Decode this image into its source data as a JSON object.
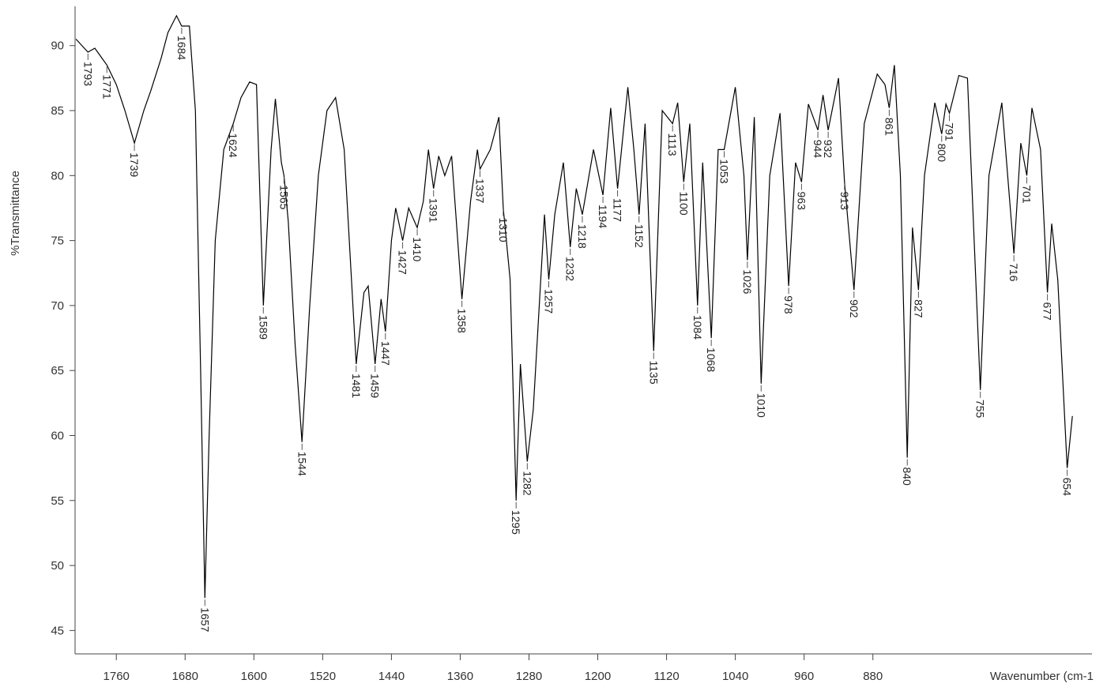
{
  "chart_data": {
    "type": "line",
    "ylabel": "%Transmittance",
    "xlabel": "Wavenumber (cm-1",
    "color": "#000000",
    "xlim": [
      1808,
      627
    ],
    "ylim": [
      43.2,
      92.9
    ],
    "xticks": [
      1760,
      1680,
      1600,
      1520,
      1440,
      1360,
      1280,
      1200,
      1120,
      1040,
      960,
      880
    ],
    "yticks": [
      45,
      50,
      55,
      60,
      65,
      70,
      75,
      80,
      85,
      90
    ],
    "x": [
      1807,
      1793,
      1785,
      1771,
      1760,
      1750,
      1739,
      1728,
      1720,
      1708,
      1700,
      1690,
      1684,
      1675,
      1668,
      1662,
      1657,
      1652,
      1645,
      1635,
      1624,
      1615,
      1605,
      1597,
      1589,
      1580,
      1575,
      1568,
      1565,
      1560,
      1552,
      1544,
      1535,
      1525,
      1515,
      1505,
      1495,
      1481,
      1472,
      1467,
      1459,
      1452,
      1447,
      1440,
      1435,
      1427,
      1420,
      1410,
      1403,
      1397,
      1391,
      1385,
      1378,
      1370,
      1358,
      1348,
      1340,
      1337,
      1325,
      1315,
      1310,
      1302,
      1295,
      1290,
      1282,
      1275,
      1262,
      1257,
      1250,
      1240,
      1232,
      1225,
      1218,
      1205,
      1194,
      1185,
      1177,
      1165,
      1158,
      1152,
      1145,
      1135,
      1125,
      1113,
      1107,
      1100,
      1093,
      1084,
      1078,
      1068,
      1060,
      1053,
      1040,
      1030,
      1026,
      1018,
      1010,
      1000,
      988,
      978,
      970,
      963,
      955,
      944,
      938,
      932,
      920,
      913,
      902,
      890,
      875,
      866,
      861,
      855,
      848,
      840,
      834,
      827,
      820,
      808,
      800,
      795,
      791,
      780,
      770,
      755,
      745,
      730,
      716,
      708,
      701,
      695,
      685,
      677,
      672,
      665,
      654,
      648
    ],
    "y": [
      90.5,
      89.5,
      89.8,
      88.5,
      87,
      85,
      82.5,
      85,
      86.5,
      89,
      91,
      92.3,
      91.5,
      91.5,
      85,
      65,
      47.5,
      60,
      75,
      82,
      84,
      86,
      87.2,
      87,
      70,
      82,
      85.9,
      81,
      80,
      76.5,
      67,
      59.5,
      70,
      80,
      85,
      86,
      82,
      65.5,
      71,
      71.5,
      65.5,
      70.5,
      68,
      75,
      77.5,
      75,
      77.5,
      76,
      78,
      82,
      79,
      81.5,
      80,
      81.5,
      70.5,
      78,
      82,
      80.5,
      82,
      84.5,
      77.5,
      72,
      55,
      65.5,
      58,
      62,
      77,
      72,
      77,
      81,
      74.5,
      79,
      77,
      82,
      78.5,
      85.2,
      79,
      86.8,
      82,
      77,
      84,
      66.5,
      85,
      84,
      85.6,
      79.5,
      84,
      70,
      81,
      67.5,
      82,
      82,
      86.8,
      80,
      73.5,
      84.5,
      64,
      80,
      84.8,
      71.5,
      81,
      79.5,
      85.5,
      83.5,
      86.2,
      83.5,
      87.5,
      79.5,
      71.2,
      84,
      87.8,
      87,
      85.2,
      88.5,
      80,
      58.3,
      76,
      71.2,
      80,
      85.6,
      83.2,
      85.5,
      84.8,
      87.7,
      87.5,
      63.5,
      80,
      85.6,
      74,
      82.5,
      80,
      85.2,
      82,
      71,
      76.3,
      72,
      57.5,
      61.5
    ],
    "peaks": [
      {
        "x": 1793,
        "y": 89.5
      },
      {
        "x": 1771,
        "y": 88.5
      },
      {
        "x": 1739,
        "y": 82.5
      },
      {
        "x": 1684,
        "y": 91.5
      },
      {
        "x": 1657,
        "y": 47.5
      },
      {
        "x": 1624,
        "y": 84
      },
      {
        "x": 1589,
        "y": 70
      },
      {
        "x": 1565,
        "y": 80
      },
      {
        "x": 1544,
        "y": 59.5
      },
      {
        "x": 1481,
        "y": 65.5
      },
      {
        "x": 1459,
        "y": 65.5
      },
      {
        "x": 1447,
        "y": 68
      },
      {
        "x": 1427,
        "y": 75
      },
      {
        "x": 1410,
        "y": 76
      },
      {
        "x": 1391,
        "y": 79
      },
      {
        "x": 1358,
        "y": 70.5
      },
      {
        "x": 1337,
        "y": 80.5
      },
      {
        "x": 1310,
        "y": 77.5
      },
      {
        "x": 1295,
        "y": 55
      },
      {
        "x": 1282,
        "y": 58
      },
      {
        "x": 1257,
        "y": 72
      },
      {
        "x": 1232,
        "y": 74.5
      },
      {
        "x": 1218,
        "y": 77
      },
      {
        "x": 1194,
        "y": 78.5
      },
      {
        "x": 1177,
        "y": 79
      },
      {
        "x": 1152,
        "y": 77
      },
      {
        "x": 1135,
        "y": 66.5
      },
      {
        "x": 1113,
        "y": 84
      },
      {
        "x": 1100,
        "y": 79.5
      },
      {
        "x": 1084,
        "y": 70
      },
      {
        "x": 1068,
        "y": 67.5
      },
      {
        "x": 1053,
        "y": 82
      },
      {
        "x": 1026,
        "y": 73.5
      },
      {
        "x": 1010,
        "y": 64
      },
      {
        "x": 978,
        "y": 71.5
      },
      {
        "x": 963,
        "y": 79.5
      },
      {
        "x": 944,
        "y": 83.5
      },
      {
        "x": 932,
        "y": 83.5
      },
      {
        "x": 913,
        "y": 79.5
      },
      {
        "x": 902,
        "y": 71.2
      },
      {
        "x": 861,
        "y": 85.2
      },
      {
        "x": 840,
        "y": 58.3
      },
      {
        "x": 827,
        "y": 71.2
      },
      {
        "x": 800,
        "y": 83.2
      },
      {
        "x": 791,
        "y": 84.8
      },
      {
        "x": 755,
        "y": 63.5
      },
      {
        "x": 716,
        "y": 74
      },
      {
        "x": 701,
        "y": 80
      },
      {
        "x": 677,
        "y": 71
      },
      {
        "x": 654,
        "y": 57.5
      }
    ]
  }
}
